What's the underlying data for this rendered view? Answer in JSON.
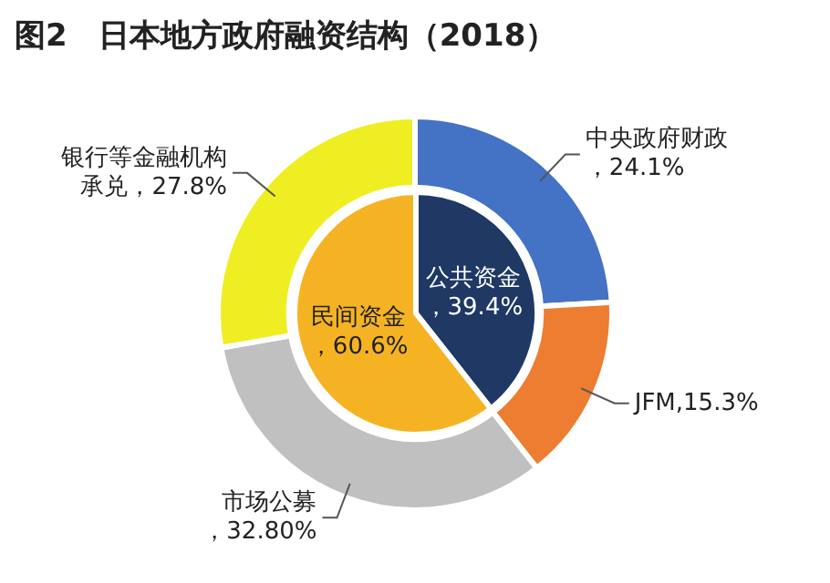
{
  "chart_data": [
    {
      "type": "donut",
      "title": "图2　日本地方政府融资结构（2018）",
      "categories": [
        "中央政府财政",
        "JFM",
        "市场公募",
        "银行等金融机构承兑"
      ],
      "values": [
        24.1,
        15.3,
        32.8,
        27.8
      ],
      "value_labels": [
        "，24.1%",
        ",15.3%",
        "，32.80%",
        "，27.8%"
      ],
      "colors": [
        "#4472c4",
        "#ed7d31",
        "#c0c0c0",
        "#eeee22"
      ]
    },
    {
      "type": "pie",
      "categories": [
        "公共资金",
        "民间资金"
      ],
      "values": [
        39.4,
        60.6
      ],
      "value_labels": [
        "，39.4%",
        "，60.6%"
      ],
      "colors": [
        "#1f3864",
        "#f5b323"
      ]
    }
  ]
}
